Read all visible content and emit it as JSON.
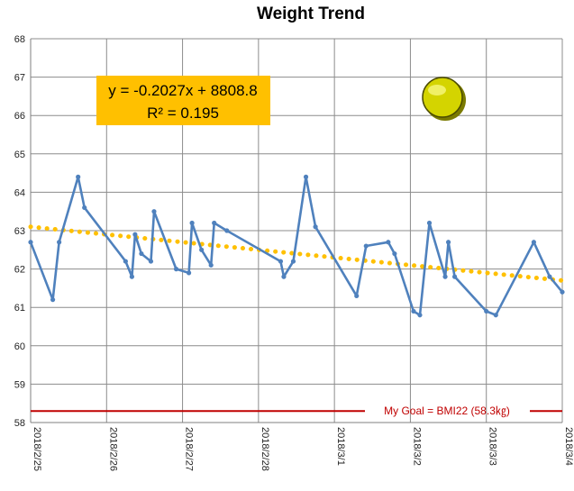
{
  "chart_data": {
    "type": "line",
    "title": "Weight Trend",
    "ylim": [
      58,
      68
    ],
    "yticks": [
      "58",
      "59",
      "60",
      "61",
      "62",
      "63",
      "64",
      "65",
      "66",
      "67",
      "68"
    ],
    "xlim": [
      "2018/2/25 00:00",
      "2018/3/4 00:00"
    ],
    "xticks": [
      "2018/2/25",
      "2018/2/26",
      "2018/2/27",
      "2018/2/28",
      "2018/3/1",
      "2018/3/2",
      "2018/3/3",
      "2018/3/4"
    ],
    "grid": true,
    "series": [
      {
        "color": "#4f81bd",
        "points": [
          [
            "2018/2/25 00:00",
            62.7
          ],
          [
            "2018/2/25 07:00",
            61.2
          ],
          [
            "2018/2/25 09:00",
            62.7
          ],
          [
            "2018/2/25 15:00",
            64.4
          ],
          [
            "2018/2/25 17:00",
            63.6
          ],
          [
            "2018/2/26 06:00",
            62.2
          ],
          [
            "2018/2/26 08:00",
            61.8
          ],
          [
            "2018/2/26 09:00",
            62.9
          ],
          [
            "2018/2/26 11:00",
            62.4
          ],
          [
            "2018/2/26 14:00",
            62.2
          ],
          [
            "2018/2/26 15:00",
            63.5
          ],
          [
            "2018/2/26 22:00",
            62.0
          ],
          [
            "2018/2/27 02:00",
            61.9
          ],
          [
            "2018/2/27 03:00",
            63.2
          ],
          [
            "2018/2/27 06:00",
            62.5
          ],
          [
            "2018/2/27 09:00",
            62.1
          ],
          [
            "2018/2/27 10:00",
            63.2
          ],
          [
            "2018/2/27 14:00",
            63.0
          ],
          [
            "2018/2/28 07:00",
            62.2
          ],
          [
            "2018/2/28 08:00",
            61.8
          ],
          [
            "2018/2/28 11:00",
            62.2
          ],
          [
            "2018/2/28 15:00",
            64.4
          ],
          [
            "2018/2/28 18:00",
            63.1
          ],
          [
            "2018/3/1 07:00",
            61.3
          ],
          [
            "2018/3/1 10:00",
            62.6
          ],
          [
            "2018/3/1 17:00",
            62.7
          ],
          [
            "2018/3/1 19:00",
            62.4
          ],
          [
            "2018/3/2 01:00",
            60.9
          ],
          [
            "2018/3/2 03:00",
            60.8
          ],
          [
            "2018/3/2 06:00",
            63.2
          ],
          [
            "2018/3/2 11:00",
            61.8
          ],
          [
            "2018/3/2 12:00",
            62.7
          ],
          [
            "2018/3/2 14:00",
            61.8
          ],
          [
            "2018/3/3 00:00",
            60.9
          ],
          [
            "2018/3/3 03:00",
            60.8
          ],
          [
            "2018/3/3 15:00",
            62.7
          ],
          [
            "2018/3/3 20:00",
            61.8
          ],
          [
            "2018/3/4 00:00",
            61.4
          ]
        ]
      }
    ],
    "trendline": {
      "color": "#ffc000",
      "equation": "y = -0.2027x + 8808.8",
      "r_squared": "R² = 0.195",
      "start": [
        "2018/2/25 00:00",
        63.1
      ],
      "end": [
        "2018/3/4 00:00",
        61.7
      ]
    },
    "goal_line": {
      "label": "My Goal = BMI22 (58.3㎏)",
      "value": 58.3,
      "color": "#c00000"
    },
    "marker_color": "#d4d400"
  }
}
